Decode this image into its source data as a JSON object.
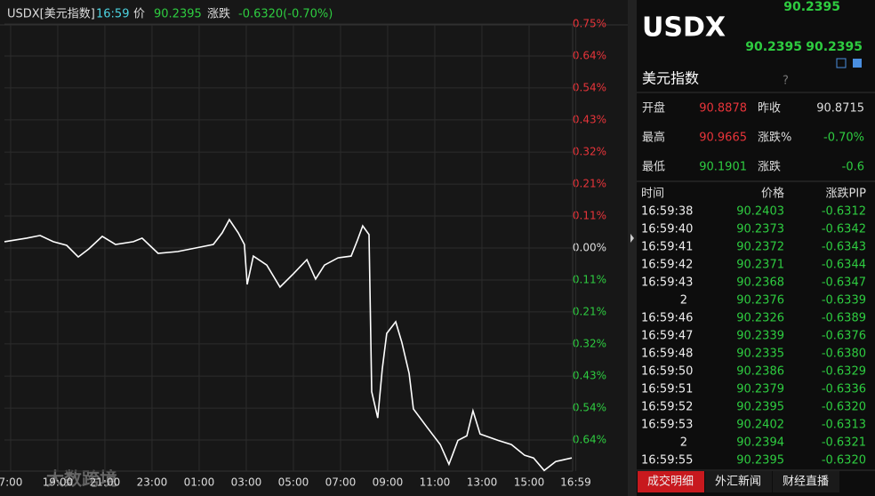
{
  "header": {
    "symbol": "USDX[美元指数]",
    "time": "16:59",
    "price_label": "价",
    "price": "90.2395",
    "change_label": "涨跌",
    "change": "-0.6320(-0.70%)"
  },
  "chart": {
    "type": "line",
    "color": "#ffffff",
    "grid": true,
    "xlim": [
      -0.45,
      24.0
    ],
    "ylim": [
      -0.75,
      0.75
    ],
    "xticks": [
      {
        "value": 0,
        "label": "7:00"
      },
      {
        "value": 2,
        "label": "19:00"
      },
      {
        "value": 4,
        "label": "21:00"
      },
      {
        "value": 6,
        "label": "23:00"
      },
      {
        "value": 8,
        "label": "01:00"
      },
      {
        "value": 10,
        "label": "03:00"
      },
      {
        "value": 12,
        "label": "05:00"
      },
      {
        "value": 14,
        "label": "07:00"
      },
      {
        "value": 16,
        "label": "09:00"
      },
      {
        "value": 18,
        "label": "11:00"
      },
      {
        "value": 20,
        "label": "13:00"
      },
      {
        "value": 22,
        "label": "15:00"
      },
      {
        "value": 23.98,
        "label": "16:59"
      }
    ],
    "yticks": [
      {
        "value": 0.75,
        "label": "0.75%"
      },
      {
        "value": 0.643,
        "label": "0.64%"
      },
      {
        "value": 0.536,
        "label": "0.54%"
      },
      {
        "value": 0.429,
        "label": "0.43%"
      },
      {
        "value": 0.321,
        "label": "0.32%"
      },
      {
        "value": 0.214,
        "label": "0.21%"
      },
      {
        "value": 0.107,
        "label": "0.11%"
      },
      {
        "value": 0,
        "label": "0.00%"
      },
      {
        "value": -0.107,
        "label": "0.11%"
      },
      {
        "value": -0.214,
        "label": "0.21%"
      },
      {
        "value": -0.321,
        "label": "0.32%"
      },
      {
        "value": -0.429,
        "label": "0.43%"
      },
      {
        "value": -0.536,
        "label": "0.54%"
      },
      {
        "value": -0.643,
        "label": "0.64%"
      }
    ],
    "series": [
      {
        "x": [
          -0.26,
          0.68,
          1.25,
          1.81,
          2.38,
          2.87,
          3.32,
          3.89,
          4.45,
          5.21,
          5.58,
          6.26,
          7.09,
          7.85,
          8.6,
          8.98,
          9.28,
          9.66,
          9.92,
          10.04,
          10.3,
          10.87,
          11.43,
          12.0,
          12.57,
          12.94,
          13.32,
          13.89,
          14.45,
          14.72,
          14.94,
          15.21,
          15.32,
          15.58,
          15.77,
          15.96,
          16.34,
          16.6,
          16.91,
          17.09,
          17.66,
          18.23,
          18.6,
          18.98,
          19.36,
          19.62,
          19.92,
          20.68,
          21.25,
          21.81,
          22.19,
          22.64,
          23.13,
          23.81
        ],
        "values": [
          0.021,
          0.033,
          0.042,
          0.021,
          0.009,
          -0.03,
          -0.003,
          0.039,
          0.012,
          0.021,
          0.033,
          -0.018,
          -0.012,
          0,
          0.012,
          0.051,
          0.095,
          0.051,
          0.012,
          -0.122,
          -0.027,
          -0.057,
          -0.131,
          -0.086,
          -0.039,
          -0.104,
          -0.057,
          -0.033,
          -0.027,
          0.027,
          0.074,
          0.045,
          -0.481,
          -0.569,
          -0.405,
          -0.286,
          -0.247,
          -0.316,
          -0.42,
          -0.539,
          -0.599,
          -0.658,
          -0.724,
          -0.644,
          -0.629,
          -0.545,
          -0.623,
          -0.644,
          -0.658,
          -0.694,
          -0.703,
          -0.745,
          -0.715,
          -0.703
        ]
      }
    ]
  },
  "watermark": "大数跨境",
  "panel": {
    "last": "90.2395",
    "symbol": "USDX",
    "bid": "90.2395",
    "ask": "90.2395",
    "name": "美元指数",
    "help": "?",
    "stats": [
      [
        "开盘",
        "90.8878",
        "昨收",
        "90.8715"
      ],
      [
        "最高",
        "90.9665",
        "涨跌%",
        "-0.70%"
      ],
      [
        "最低",
        "90.1901",
        "涨跌",
        "-0.6"
      ]
    ],
    "trade_header": [
      "时间",
      "价格",
      "涨跌PIP"
    ],
    "trades": [
      [
        "16:59:38",
        "90.2403",
        "-0.6312"
      ],
      [
        "16:59:40",
        "90.2373",
        "-0.6342"
      ],
      [
        "16:59:41",
        "90.2372",
        "-0.6343"
      ],
      [
        "16:59:42",
        "90.2371",
        "-0.6344"
      ],
      [
        "16:59:43",
        "90.2368",
        "-0.6347"
      ],
      [
        "2",
        "90.2376",
        "-0.6339"
      ],
      [
        "16:59:46",
        "90.2326",
        "-0.6389"
      ],
      [
        "16:59:47",
        "90.2339",
        "-0.6376"
      ],
      [
        "16:59:48",
        "90.2335",
        "-0.6380"
      ],
      [
        "16:59:50",
        "90.2386",
        "-0.6329"
      ],
      [
        "16:59:51",
        "90.2379",
        "-0.6336"
      ],
      [
        "16:59:52",
        "90.2395",
        "-0.6320"
      ],
      [
        "16:59:53",
        "90.2402",
        "-0.6313"
      ],
      [
        "2",
        "90.2394",
        "-0.6321"
      ],
      [
        "16:59:55",
        "90.2395",
        "-0.6320"
      ]
    ],
    "tabs": [
      "成交明细",
      "外汇新闻",
      "财经直播"
    ]
  }
}
